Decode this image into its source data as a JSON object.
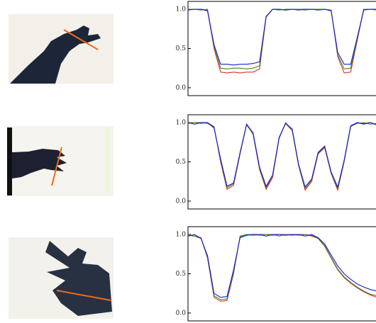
{
  "chart_data": [
    {
      "type": "line",
      "x": [
        0,
        1,
        2,
        3,
        4,
        5,
        6,
        7,
        8,
        9,
        10,
        11,
        12,
        13,
        14,
        15,
        16,
        17,
        18,
        19,
        20,
        21,
        22,
        23,
        24,
        25,
        26,
        27,
        28,
        29
      ],
      "xlim": [
        0,
        29
      ],
      "ylim": [
        -0.1,
        1.1
      ],
      "yticks": [
        {
          "value": 0,
          "label": "0.0"
        },
        0.5,
        {
          "value": 1,
          "label": "1.0"
        }
      ],
      "series": [
        {
          "color": "#e0301e",
          "values": [
            1,
            1,
            1,
            0.99,
            0.5,
            0.2,
            0.19,
            0.2,
            0.19,
            0.2,
            0.2,
            0.24,
            0.9,
            1,
            1,
            0.99,
            1,
            1,
            1,
            1,
            1,
            1,
            0.99,
            0.4,
            0.19,
            0.2,
            0.6,
            1,
            1,
            1
          ]
        },
        {
          "color": "#3a8a1e",
          "values": [
            1,
            1,
            0.99,
            1,
            0.52,
            0.25,
            0.24,
            0.25,
            0.25,
            0.24,
            0.25,
            0.28,
            0.9,
            1,
            0.99,
            1,
            1,
            1,
            0.99,
            1,
            1,
            1,
            0.99,
            0.42,
            0.24,
            0.25,
            0.62,
            1,
            1,
            0.99
          ]
        },
        {
          "color": "#1a1adb",
          "values": [
            0.99,
            1,
            1,
            0.98,
            0.55,
            0.3,
            0.3,
            0.29,
            0.3,
            0.3,
            0.31,
            0.33,
            0.91,
            1,
            1,
            0.99,
            1,
            0.99,
            1,
            1,
            0.99,
            1,
            0.98,
            0.45,
            0.3,
            0.3,
            0.64,
            0.99,
            1,
            1
          ]
        }
      ]
    },
    {
      "type": "line",
      "x": [
        0,
        1,
        2,
        3,
        4,
        5,
        6,
        7,
        8,
        9,
        10,
        11,
        12,
        13,
        14,
        15,
        16,
        17,
        18,
        19,
        20,
        21,
        22,
        23,
        24,
        25,
        26,
        27,
        28,
        29
      ],
      "xlim": [
        0,
        29
      ],
      "ylim": [
        -0.1,
        1.1
      ],
      "yticks": [
        {
          "value": 0,
          "label": "0.0"
        },
        0.5,
        {
          "value": 1,
          "label": "1.0"
        }
      ],
      "series": [
        {
          "color": "#e0301e",
          "values": [
            1,
            1,
            0.99,
            1,
            0.95,
            0.5,
            0.15,
            0.2,
            0.6,
            0.98,
            0.85,
            0.4,
            0.15,
            0.3,
            0.8,
            0.99,
            0.9,
            0.45,
            0.14,
            0.25,
            0.6,
            0.68,
            0.35,
            0.14,
            0.5,
            0.95,
            1,
            0.99,
            1,
            0.98
          ]
        },
        {
          "color": "#3a8a1e",
          "values": [
            0.99,
            1,
            1,
            0.99,
            0.94,
            0.52,
            0.17,
            0.22,
            0.61,
            0.97,
            0.86,
            0.42,
            0.17,
            0.32,
            0.8,
            1,
            0.91,
            0.46,
            0.16,
            0.27,
            0.61,
            0.69,
            0.36,
            0.16,
            0.51,
            0.95,
            0.99,
            1,
            0.98,
            0.99
          ]
        },
        {
          "color": "#1a1adb",
          "values": [
            1,
            0.98,
            1,
            1,
            0.93,
            0.54,
            0.19,
            0.23,
            0.62,
            0.98,
            0.87,
            0.43,
            0.19,
            0.33,
            0.81,
            0.99,
            0.92,
            0.47,
            0.18,
            0.28,
            0.62,
            0.7,
            0.37,
            0.18,
            0.52,
            0.96,
            1,
            0.98,
            1,
            0.97
          ]
        }
      ]
    },
    {
      "type": "line",
      "x": [
        0,
        1,
        2,
        3,
        4,
        5,
        6,
        7,
        8,
        9,
        10,
        11,
        12,
        13,
        14,
        15,
        16,
        17,
        18,
        19,
        20,
        21,
        22,
        23,
        24,
        25,
        26,
        27,
        28,
        29
      ],
      "xlim": [
        0,
        29
      ],
      "ylim": [
        -0.1,
        1.1
      ],
      "yticks": [
        {
          "value": 0,
          "label": "0.0"
        },
        0.5,
        {
          "value": 1,
          "label": "1.0"
        }
      ],
      "series": [
        {
          "color": "#e0301e",
          "values": [
            1,
            0.98,
            0.96,
            0.7,
            0.2,
            0.15,
            0.16,
            0.5,
            0.98,
            1,
            0.99,
            1,
            1,
            0.99,
            1,
            1,
            1,
            0.99,
            1,
            0.98,
            0.95,
            0.85,
            0.7,
            0.55,
            0.45,
            0.38,
            0.32,
            0.27,
            0.23,
            0.2
          ]
        },
        {
          "color": "#3a8a1e",
          "values": [
            0.99,
            0.98,
            0.95,
            0.71,
            0.22,
            0.17,
            0.18,
            0.52,
            0.97,
            1,
            1,
            0.99,
            1,
            1,
            0.98,
            1,
            0.99,
            1,
            1,
            0.99,
            0.95,
            0.86,
            0.71,
            0.56,
            0.46,
            0.39,
            0.33,
            0.28,
            0.24,
            0.22
          ]
        },
        {
          "color": "#1a1adb",
          "values": [
            0.98,
            1,
            0.95,
            0.73,
            0.25,
            0.2,
            0.21,
            0.55,
            0.96,
            0.99,
            1,
            1,
            0.98,
            1,
            1,
            0.99,
            1,
            1,
            0.98,
            1,
            0.96,
            0.88,
            0.74,
            0.6,
            0.5,
            0.43,
            0.37,
            0.33,
            0.3,
            0.28
          ]
        }
      ]
    }
  ]
}
